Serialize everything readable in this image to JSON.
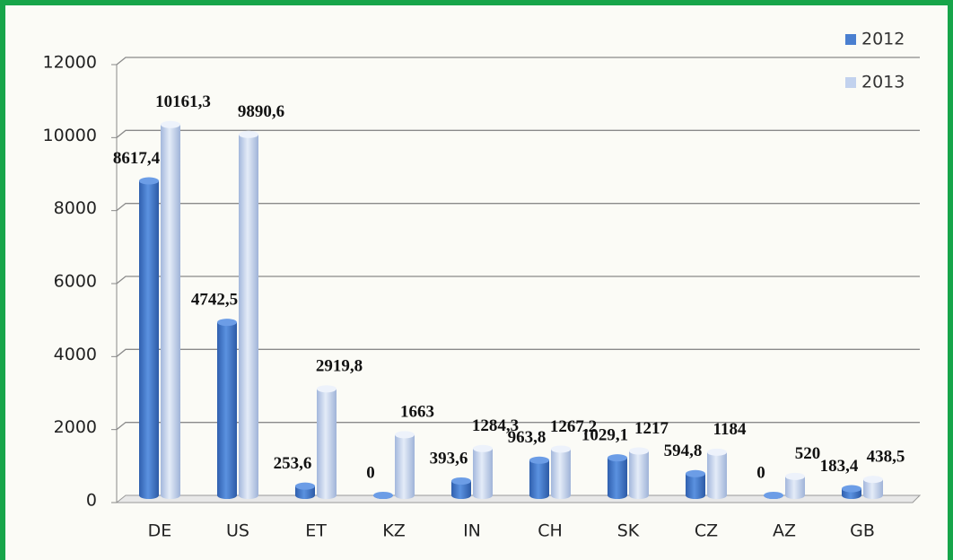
{
  "chart_data": {
    "type": "bar",
    "categories": [
      "DE",
      "US",
      "ET",
      "KZ",
      "IN",
      "CH",
      "SK",
      "CZ",
      "AZ",
      "GB"
    ],
    "series": [
      {
        "name": "2012",
        "color": "#4a7fd0",
        "values": [
          8617.4,
          4742.5,
          253.6,
          0,
          393.6,
          963.8,
          1029.1,
          594.8,
          0,
          183.4
        ],
        "value_labels": [
          "8617,4",
          "4742,5",
          "253,6",
          "0",
          "393,6",
          "963,8",
          "1029,1",
          "594,8",
          "0",
          "183,4"
        ]
      },
      {
        "name": "2013",
        "color": "#c2d2ee",
        "values": [
          10161.3,
          9890.6,
          2919.8,
          1663,
          1284.3,
          1267.2,
          1217,
          1184,
          520,
          438.5
        ],
        "value_labels": [
          "10161,3",
          "9890,6",
          "2919,8",
          "1663",
          "1284,3",
          "1267,2",
          "1217",
          "1184",
          "520",
          "438,5"
        ]
      }
    ],
    "ylim": [
      0,
      12000
    ],
    "yticks": [
      0,
      2000,
      4000,
      6000,
      8000,
      10000,
      12000
    ],
    "grid": true,
    "legend": "top-right"
  }
}
